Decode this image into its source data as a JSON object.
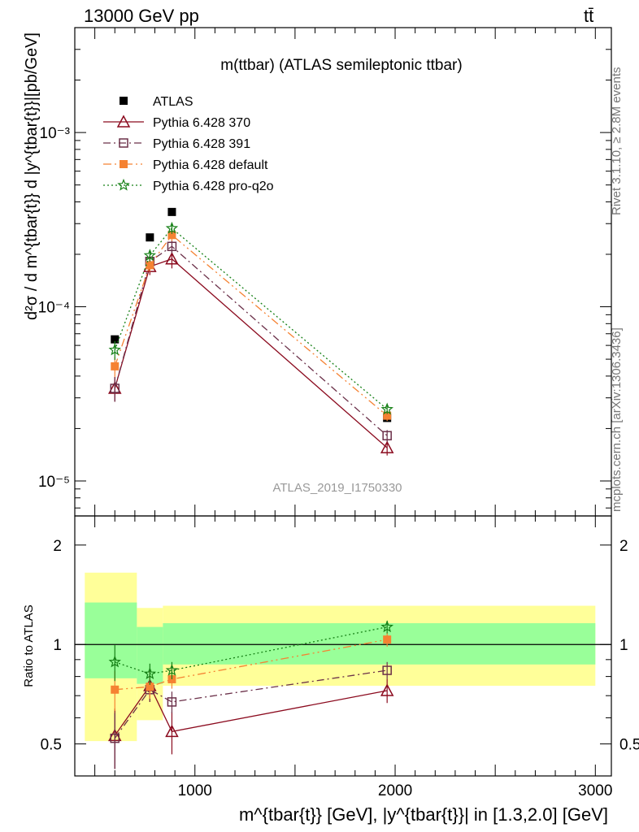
{
  "header": {
    "energy": "13000 GeV pp",
    "process": "tt̄"
  },
  "side_labels": {
    "rivet": "Rivet 3.1.10, ≥ 2.8M events",
    "site": "mcplots.cern.ch [arXiv:1306.3436]"
  },
  "chart_data": [
    {
      "type": "line",
      "panel": "main",
      "title": "m(ttbar) (ATLAS semileptonic ttbar)",
      "watermark": "ATLAS_2019_I1750330",
      "ylabel": "d²σ / d m^{tbar{t}} d |y^{tbar{t}}|[pb/GeV]",
      "yscale": "log",
      "xlim": [
        400,
        3080
      ],
      "ylim": [
        6.3e-06,
        0.004
      ],
      "ytick_labels": [
        "10⁻⁵",
        "10⁻⁴",
        "10⁻³"
      ],
      "ytick_values": [
        1e-05,
        0.0001,
        0.001
      ],
      "x": [
        600,
        775,
        885,
        1960
      ],
      "legend_position": "top-left",
      "series": [
        {
          "name": "ATLAS",
          "color": "#000000",
          "marker": "square",
          "values": [
            6.5e-05,
            0.00025,
            0.00035,
            2.3e-05
          ]
        },
        {
          "name": "Pythia 6.428 370",
          "color": "#8b0a1e",
          "marker": "triangle-open",
          "linestyle": "solid",
          "values": [
            3.4e-05,
            0.00017,
            0.000188,
            1.55e-05
          ],
          "errors": [
            5.5e-06,
            1.8e-05,
            2.2e-05,
            1.5e-06
          ]
        },
        {
          "name": "Pythia 6.428 391",
          "color": "#6b3049",
          "marker": "square-open",
          "linestyle": "dashdot",
          "values": [
            3.4e-05,
            0.000182,
            0.000222,
            1.82e-05
          ],
          "errors": [
            5.5e-06,
            1.5e-05,
            1.9e-05,
            1.4e-06
          ]
        },
        {
          "name": "Pythia 6.428 default",
          "color": "#f58232",
          "marker": "square",
          "linestyle": "dashdotdot",
          "values": [
            4.55e-05,
            0.000173,
            0.000258,
            2.37e-05
          ],
          "errors": [
            6e-06,
            1.4e-05,
            2e-05,
            1.6e-06
          ]
        },
        {
          "name": "Pythia 6.428 pro-q2o",
          "color": "#168016",
          "marker": "star",
          "linestyle": "dotted",
          "values": [
            5.65e-05,
            0.000197,
            0.000282,
            2.58e-05
          ],
          "errors": [
            7e-06,
            1.5e-05,
            2e-05,
            1.6e-06
          ]
        }
      ]
    },
    {
      "type": "line",
      "panel": "ratio",
      "ylabel": "Ratio to ATLAS",
      "xlabel": "m^{tbar{t}} [GeV], |y^{tbar{t}}| in [1.3,2.0] [GeV]",
      "ylim": [
        0.4,
        2.45
      ],
      "yscale": "log",
      "ytick_labels": [
        "0.5",
        "1",
        "2"
      ],
      "ytick_values": [
        0.5,
        1,
        2
      ],
      "xlim": [
        400,
        3080
      ],
      "xtick_labels": [
        "1000",
        "2000",
        "3000"
      ],
      "xtick_values": [
        1000,
        2000,
        3000
      ],
      "bands": [
        {
          "x0": 450,
          "x1": 710,
          "yellow": [
            0.51,
            1.65
          ],
          "green": [
            0.79,
            1.34
          ]
        },
        {
          "x0": 710,
          "x1": 840,
          "yellow": [
            0.59,
            1.29
          ],
          "green": [
            0.76,
            1.13
          ]
        },
        {
          "x0": 840,
          "x1": 3000,
          "yellow": [
            0.75,
            1.31
          ],
          "green": [
            0.87,
            1.16
          ]
        }
      ],
      "x": [
        600,
        775,
        885,
        1960
      ],
      "series": [
        {
          "name": "Pythia 6.428 370",
          "color": "#8b0a1e",
          "marker": "triangle-open",
          "linestyle": "solid",
          "values": [
            0.53,
            0.75,
            0.545,
            0.725
          ],
          "errors": [
            0.11,
            0.08,
            0.08,
            0.06
          ]
        },
        {
          "name": "Pythia 6.428 391",
          "color": "#6b3049",
          "marker": "square-open",
          "linestyle": "dashdot",
          "values": [
            0.52,
            0.73,
            0.67,
            0.835
          ],
          "errors": [
            0.1,
            0.06,
            0.05,
            0.05
          ]
        },
        {
          "name": "Pythia 6.428 default",
          "color": "#f58232",
          "marker": "square",
          "linestyle": "dashdotdot",
          "values": [
            0.73,
            0.745,
            0.785,
            1.035
          ],
          "errors": [
            0.1,
            0.06,
            0.05,
            0.05
          ]
        },
        {
          "name": "Pythia 6.428 pro-q2o",
          "color": "#168016",
          "marker": "star",
          "linestyle": "dotted",
          "values": [
            0.885,
            0.815,
            0.835,
            1.13
          ],
          "errors": [
            0.11,
            0.06,
            0.05,
            0.05
          ]
        }
      ]
    }
  ]
}
